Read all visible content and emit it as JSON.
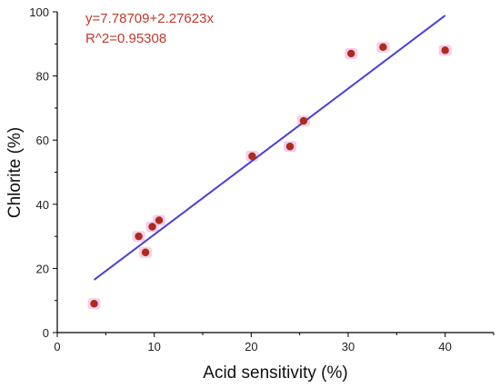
{
  "chart_data": {
    "type": "scatter",
    "title": "",
    "xlabel": "Acid sensitivity (%)",
    "ylabel": "Chlorite (%)",
    "xlim": [
      0,
      45
    ],
    "ylim": [
      0,
      100
    ],
    "xticks": [
      0,
      10,
      20,
      30,
      40
    ],
    "yticks": [
      0,
      20,
      40,
      60,
      80,
      100
    ],
    "grid": false,
    "series": [
      {
        "x": [
          3.8,
          8.4,
          9.1,
          9.8,
          10.5,
          20.1,
          24.0,
          25.4,
          30.3,
          33.6,
          40.0
        ],
        "y": [
          9,
          30,
          25,
          33,
          35,
          55,
          58,
          66,
          87,
          89,
          88
        ]
      }
    ],
    "fit_line": {
      "intercept": 7.78709,
      "slope": 2.27623,
      "x_range": [
        3.8,
        40.0
      ]
    },
    "annotations": [
      {
        "text": "y=7.78709+2.27623x"
      },
      {
        "text": "R^2=0.95308"
      }
    ],
    "colors": {
      "marker": "#b02a1a",
      "marker_halo": "#f0c8ec",
      "fit_line": "#4b3fd8",
      "annotation": "#c0392b",
      "axis": "#000000"
    }
  }
}
